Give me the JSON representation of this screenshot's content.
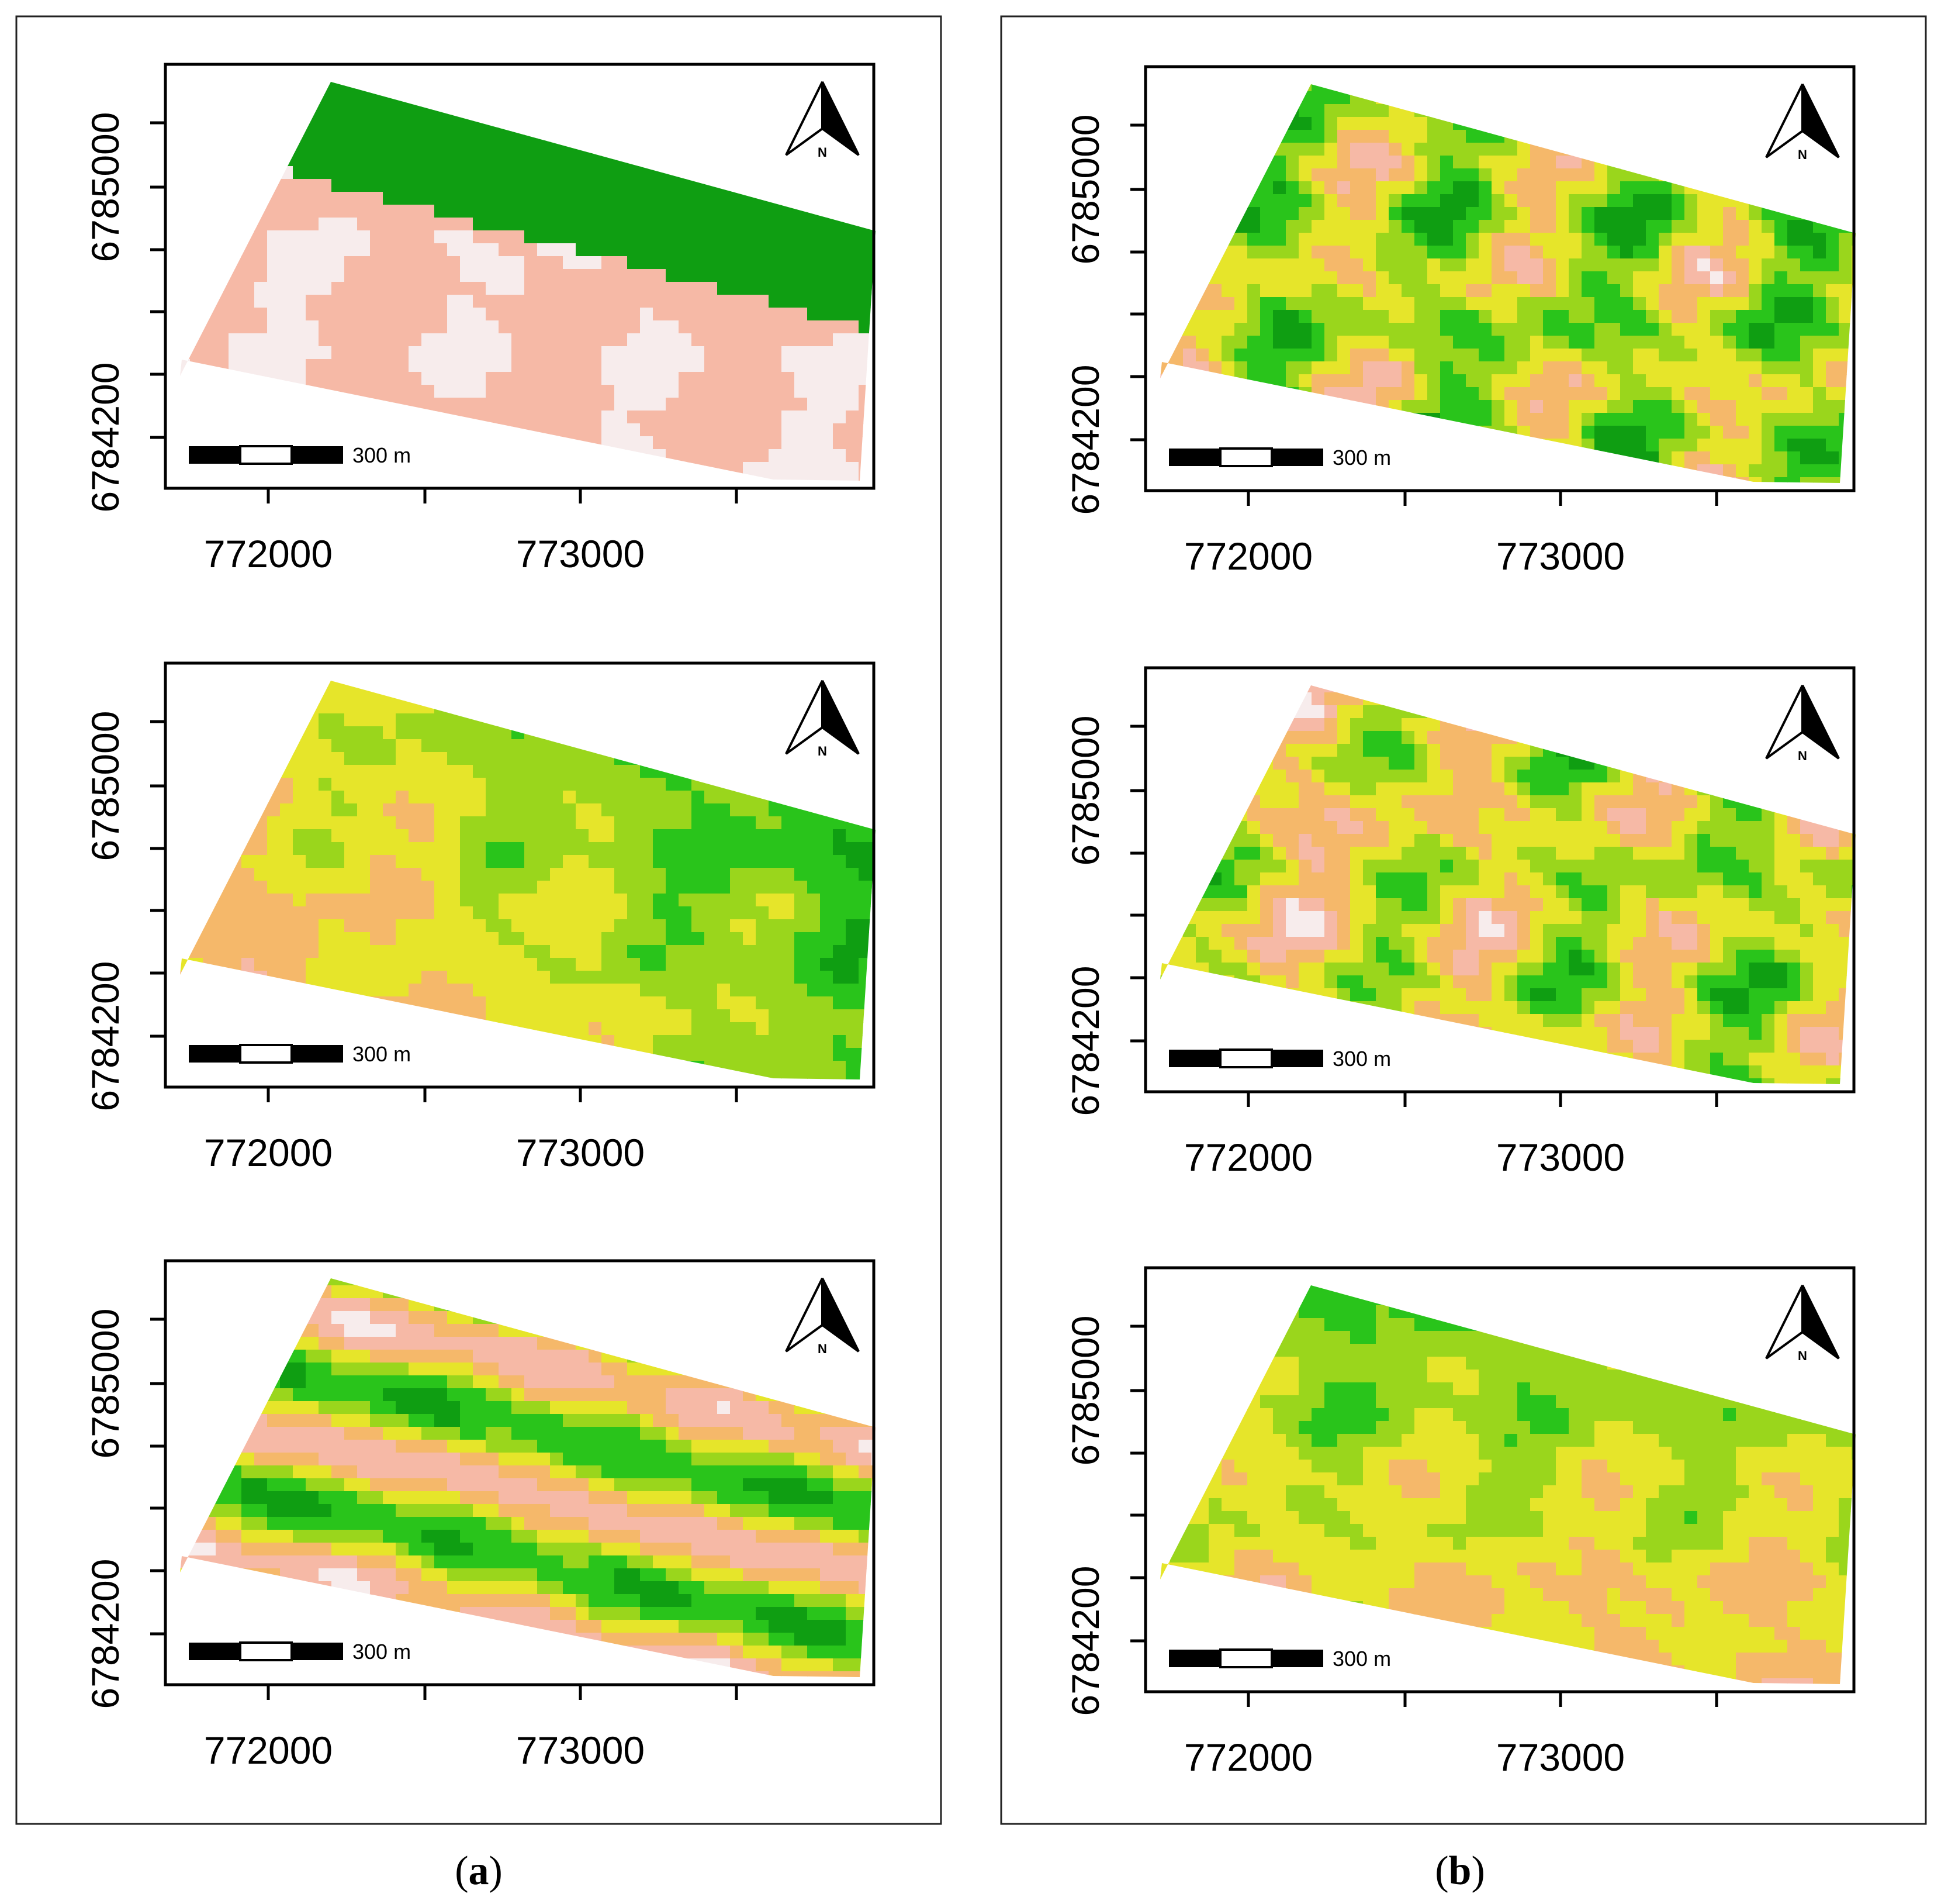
{
  "figure": {
    "panels": [
      {
        "id": "a",
        "label_open": "(",
        "label_letter": "a",
        "label_close": ")",
        "maps": [
          {
            "x_ticks": [
              "772000",
              "773000"
            ],
            "y_ticks": [
              "6785000",
              "6784200"
            ],
            "scale_bar": "300 m",
            "north": "N",
            "pattern": "pale"
          },
          {
            "x_ticks": [
              "772000",
              "773000"
            ],
            "y_ticks": [
              "6785000",
              "6784200"
            ],
            "scale_bar": "300 m",
            "north": "N",
            "pattern": "east-green"
          },
          {
            "x_ticks": [
              "772000",
              "773000"
            ],
            "y_ticks": [
              "6785000",
              "6784200"
            ],
            "scale_bar": "300 m",
            "north": "N",
            "pattern": "stripes"
          }
        ]
      },
      {
        "id": "b",
        "label_open": "(",
        "label_letter": "b",
        "label_close": ")",
        "maps": [
          {
            "x_ticks": [
              "772000",
              "773000"
            ],
            "y_ticks": [
              "6785000",
              "6784200"
            ],
            "scale_bar": "300 m",
            "north": "N",
            "pattern": "mottled"
          },
          {
            "x_ticks": [
              "772000",
              "773000"
            ],
            "y_ticks": [
              "6785000",
              "6784200"
            ],
            "scale_bar": "300 m",
            "north": "N",
            "pattern": "mottled-pink-west"
          },
          {
            "x_ticks": [
              "772000",
              "773000"
            ],
            "y_ticks": [
              "6785000",
              "6784200"
            ],
            "scale_bar": "300 m",
            "north": "N",
            "pattern": "north-green"
          }
        ]
      }
    ],
    "colors": {
      "white": "#f7ecec",
      "pink": "#f6b9a6",
      "orange": "#f5b86a",
      "yellow": "#e6e52a",
      "lightgreen": "#9ad61c",
      "green": "#29c41b",
      "darkgreen": "#0f9e12"
    }
  }
}
